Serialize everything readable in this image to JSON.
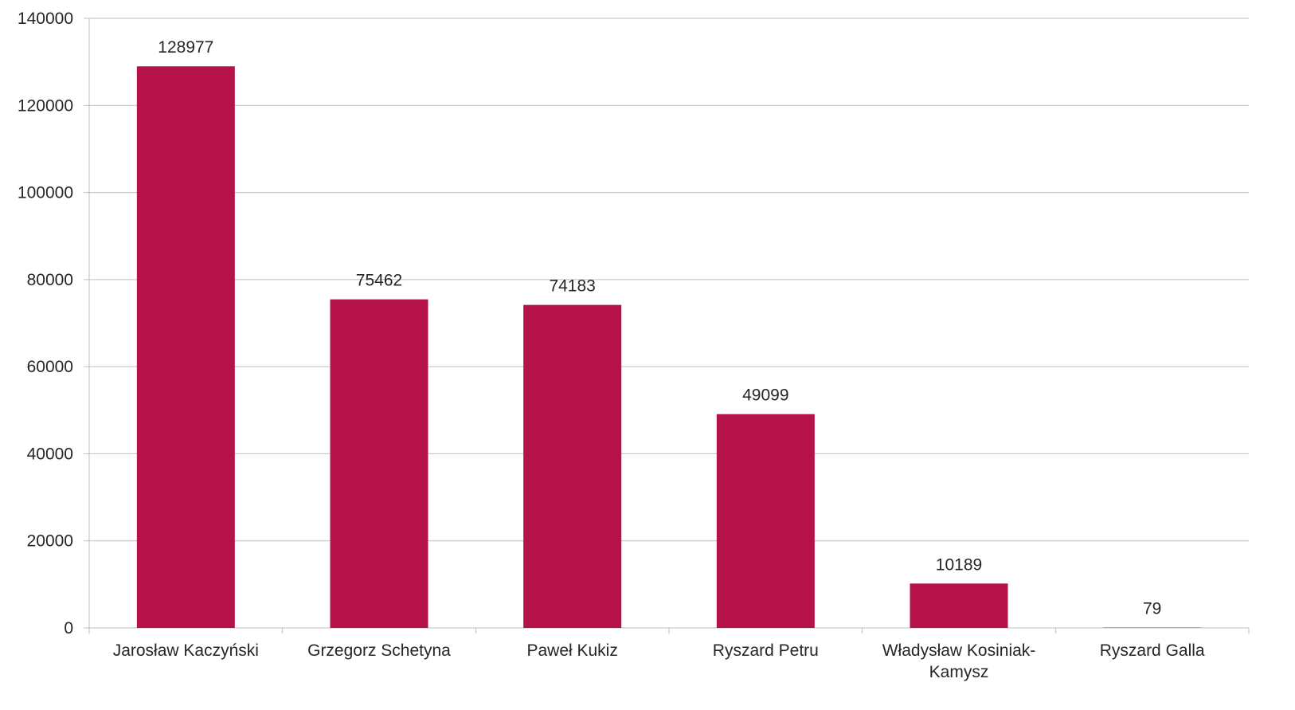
{
  "chart_data": {
    "type": "bar",
    "title": "",
    "xlabel": "",
    "ylabel": "",
    "ylim": [
      0,
      140000
    ],
    "yticks": [
      "0",
      "20000",
      "40000",
      "60000",
      "80000",
      "100000",
      "120000",
      "140000"
    ],
    "categories": [
      [
        "Jarosław Kaczyński"
      ],
      [
        "Grzegorz Schetyna"
      ],
      [
        "Paweł Kukiz"
      ],
      [
        "Ryszard Petru"
      ],
      [
        "Władysław Kosiniak-",
        "Kamysz"
      ],
      [
        "Ryszard Galla"
      ]
    ],
    "values": [
      128977,
      75462,
      74183,
      49099,
      10189,
      79
    ],
    "data_labels": [
      "128977",
      "75462",
      "74183",
      "49099",
      "10189",
      "79"
    ],
    "bar_color": "#b5124a",
    "grid": true,
    "legend": "none"
  }
}
